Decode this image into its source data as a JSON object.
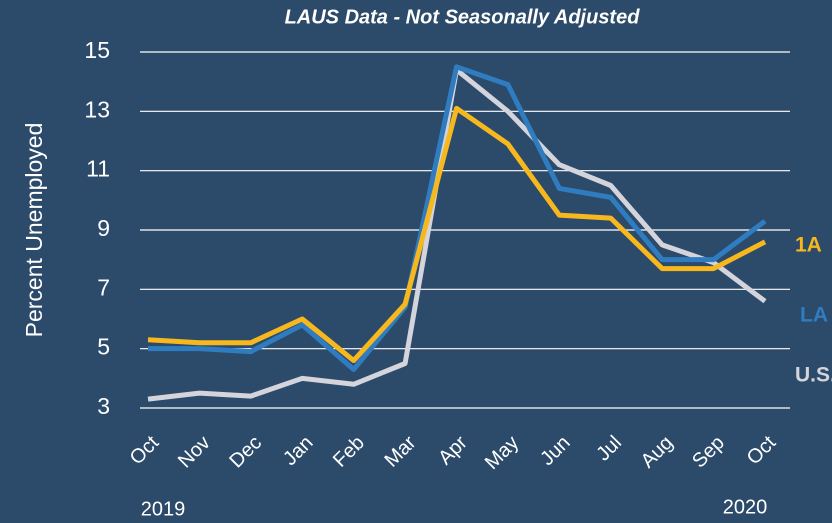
{
  "chart_data": {
    "type": "line",
    "subtitle": "LAUS Data - Not Seasonally Adjusted",
    "y_label": "Percent Unemployed",
    "categories": [
      "Oct",
      "Nov",
      "Dec",
      "Jan",
      "Feb",
      "Mar",
      "Apr",
      "May",
      "Jun",
      "Jul",
      "Aug",
      "Sep",
      "Oct"
    ],
    "year_labels": [
      "2019",
      "2020"
    ],
    "series": [
      {
        "name": "U.S.",
        "color": "#d3d4dc",
        "values": [
          3.3,
          3.5,
          3.4,
          4.0,
          3.8,
          4.5,
          14.4,
          13.0,
          11.2,
          10.5,
          8.5,
          7.9,
          6.6
        ]
      },
      {
        "name": "LA",
        "color": "#2f7dc0",
        "values": [
          5.0,
          5.0,
          4.9,
          5.8,
          4.3,
          6.4,
          14.5,
          13.9,
          10.4,
          10.1,
          8.0,
          8.0,
          9.3
        ]
      },
      {
        "name": "1A",
        "color": "#f7b81e",
        "values": [
          5.3,
          5.2,
          5.2,
          6.0,
          4.6,
          6.5,
          13.1,
          11.9,
          9.5,
          9.4,
          7.7,
          7.7,
          8.6
        ]
      }
    ],
    "ylim": [
      3,
      15
    ],
    "yticks": [
      3,
      5,
      7,
      9,
      11,
      13,
      15
    ],
    "grid": true
  }
}
